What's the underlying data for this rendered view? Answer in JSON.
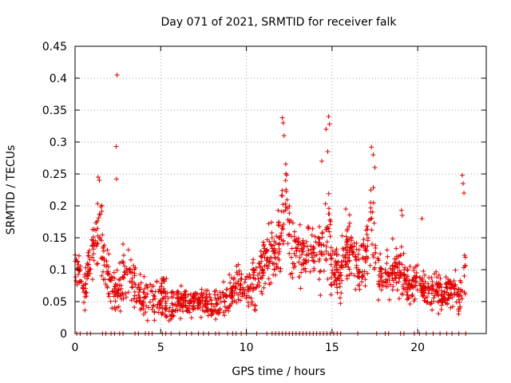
{
  "chart_data": {
    "type": "scatter",
    "title": "Day 071 of 2021, SRMTID for receiver falk",
    "xlabel": "GPS time / hours",
    "ylabel": "SRMTID / TECUs",
    "xlim": [
      0,
      24
    ],
    "ylim": [
      0,
      0.45
    ],
    "xticks": [
      0,
      5,
      10,
      15,
      20
    ],
    "yticks": [
      0,
      0.05,
      0.1,
      0.15,
      0.2,
      0.25,
      0.3,
      0.35,
      0.4,
      0.45
    ],
    "xtick_labels": [
      "0",
      "5",
      "10",
      "15",
      "20"
    ],
    "ytick_labels": [
      "0",
      "0.05",
      "0.1",
      "0.15",
      "0.2",
      "0.25",
      "0.3",
      "0.35",
      "0.4",
      "0.45"
    ],
    "grid": true,
    "marker": "+",
    "series": [
      {
        "name": "SRMTID",
        "color": "#e00000",
        "profile": {
          "x": [
            0.0,
            0.3,
            0.6,
            0.9,
            1.2,
            1.5,
            1.8,
            2.1,
            2.4,
            2.7,
            3.0,
            3.5,
            4.0,
            4.5,
            5.0,
            5.5,
            6.0,
            6.5,
            7.0,
            7.5,
            8.0,
            8.5,
            9.0,
            9.5,
            10.0,
            10.5,
            11.0,
            11.5,
            12.0,
            12.3,
            12.6,
            13.0,
            13.5,
            14.0,
            14.5,
            14.8,
            15.0,
            15.5,
            16.0,
            16.5,
            17.0,
            17.3,
            17.6,
            18.0,
            18.5,
            19.0,
            19.5,
            20.0,
            20.5,
            21.0,
            21.5,
            22.0,
            22.5,
            22.8
          ],
          "center": [
            0.11,
            0.09,
            0.07,
            0.12,
            0.15,
            0.17,
            0.1,
            0.08,
            0.07,
            0.08,
            0.1,
            0.07,
            0.06,
            0.05,
            0.06,
            0.05,
            0.05,
            0.05,
            0.05,
            0.05,
            0.04,
            0.05,
            0.06,
            0.08,
            0.06,
            0.08,
            0.12,
            0.12,
            0.14,
            0.22,
            0.14,
            0.12,
            0.13,
            0.12,
            0.12,
            0.16,
            0.1,
            0.09,
            0.14,
            0.1,
            0.12,
            0.19,
            0.1,
            0.08,
            0.1,
            0.1,
            0.07,
            0.09,
            0.06,
            0.07,
            0.06,
            0.07,
            0.06,
            0.1
          ],
          "spread": [
            0.02,
            0.02,
            0.02,
            0.03,
            0.04,
            0.05,
            0.03,
            0.03,
            0.03,
            0.03,
            0.03,
            0.02,
            0.02,
            0.02,
            0.02,
            0.02,
            0.015,
            0.015,
            0.015,
            0.015,
            0.015,
            0.015,
            0.02,
            0.02,
            0.02,
            0.03,
            0.03,
            0.03,
            0.04,
            0.06,
            0.04,
            0.03,
            0.03,
            0.03,
            0.04,
            0.06,
            0.03,
            0.03,
            0.03,
            0.03,
            0.04,
            0.05,
            0.03,
            0.02,
            0.03,
            0.03,
            0.02,
            0.02,
            0.02,
            0.02,
            0.02,
            0.02,
            0.02,
            0.04
          ]
        },
        "outliers": [
          {
            "x": 2.45,
            "y": 0.405
          },
          {
            "x": 2.4,
            "y": 0.293
          },
          {
            "x": 2.42,
            "y": 0.242
          },
          {
            "x": 1.35,
            "y": 0.245
          },
          {
            "x": 1.42,
            "y": 0.24
          },
          {
            "x": 12.1,
            "y": 0.338
          },
          {
            "x": 12.15,
            "y": 0.33
          },
          {
            "x": 12.2,
            "y": 0.31
          },
          {
            "x": 14.8,
            "y": 0.34
          },
          {
            "x": 14.85,
            "y": 0.328
          },
          {
            "x": 14.65,
            "y": 0.32
          },
          {
            "x": 14.75,
            "y": 0.285
          },
          {
            "x": 14.4,
            "y": 0.27
          },
          {
            "x": 17.3,
            "y": 0.292
          },
          {
            "x": 17.4,
            "y": 0.28
          },
          {
            "x": 17.5,
            "y": 0.26
          },
          {
            "x": 22.6,
            "y": 0.248
          },
          {
            "x": 22.65,
            "y": 0.235
          },
          {
            "x": 22.7,
            "y": 0.22
          },
          {
            "x": 19.05,
            "y": 0.193
          },
          {
            "x": 19.1,
            "y": 0.185
          },
          {
            "x": 20.25,
            "y": 0.18
          },
          {
            "x": 15.8,
            "y": 0.195
          },
          {
            "x": 11.5,
            "y": 0.15
          },
          {
            "x": 9.6,
            "y": 0.098
          },
          {
            "x": 2.8,
            "y": 0.14
          }
        ],
        "zero_markers_x": [
          0.1,
          0.3,
          0.7,
          0.9,
          1.6,
          1.8,
          2.1,
          2.3,
          2.6,
          2.8,
          3.5,
          3.7,
          4.1,
          4.3,
          4.5,
          5.1,
          5.3,
          5.6,
          6.1,
          6.5,
          6.8,
          7.2,
          7.5,
          7.8,
          8.2,
          8.4,
          8.9,
          9.2,
          9.4,
          9.7,
          10.0,
          10.6,
          11.2,
          11.5,
          11.7,
          11.9,
          12.1,
          12.3,
          12.5,
          12.7,
          12.9,
          13.1,
          13.3,
          13.5,
          13.7,
          13.9,
          14.1,
          14.3,
          14.5,
          14.7,
          14.9,
          15.1,
          15.3,
          15.5,
          16.5,
          17.6,
          18.1,
          18.3,
          19.0,
          19.2,
          19.8,
          20.1,
          20.5,
          20.9,
          21.3,
          21.7,
          22.0,
          22.4,
          22.8
        ],
        "n_points": 1500
      }
    ]
  }
}
